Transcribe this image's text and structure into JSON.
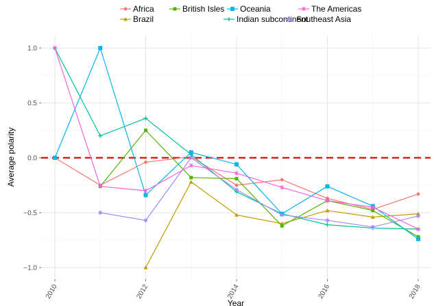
{
  "chart_data": {
    "type": "line",
    "xlabel": "Year",
    "ylabel": "Average polarity",
    "xlim": [
      2010,
      2018
    ],
    "ylim": [
      -1.1,
      1.1
    ],
    "x_ticks": [
      2010,
      2012,
      2014,
      2016,
      2018
    ],
    "y_ticks": [
      1.0,
      0.5,
      0.0,
      -0.5,
      -1.0
    ],
    "x_tick_labels": [
      "2010",
      "2012",
      "2014",
      "2016",
      "2018"
    ],
    "y_tick_labels": [
      "1.0",
      "0.5",
      "0.0",
      "−0.5",
      "−1.0"
    ],
    "grid": true,
    "legend_position": "top",
    "reference_line": {
      "y": 0.0,
      "style": "dashed",
      "color": "#e31a1c"
    },
    "series": [
      {
        "name": "Africa",
        "color": "#F8766D",
        "marker": "circle",
        "x": [
          2010,
          2011,
          2012,
          2013,
          2014,
          2015,
          2016,
          2017,
          2018
        ],
        "y": [
          0.0,
          -0.25,
          -0.04,
          0.01,
          -0.25,
          -0.2,
          -0.37,
          -0.47,
          -0.33
        ]
      },
      {
        "name": "Brazil",
        "color": "#C49A00",
        "marker": "triangle",
        "x": [
          2012,
          2013,
          2014,
          2015,
          2016,
          2017,
          2018
        ],
        "y": [
          -1.0,
          -0.22,
          -0.52,
          -0.6,
          -0.48,
          -0.54,
          -0.51
        ]
      },
      {
        "name": "British Isles",
        "color": "#53B400",
        "marker": "square",
        "x": [
          2011,
          2012,
          2013,
          2014,
          2015,
          2016,
          2017,
          2018
        ],
        "y": [
          -0.26,
          0.25,
          -0.18,
          -0.19,
          -0.62,
          -0.39,
          -0.48,
          -0.72
        ]
      },
      {
        "name": "Indian subcontinent",
        "color": "#00C094",
        "marker": "plus",
        "x": [
          2010,
          2011,
          2012,
          2013,
          2014,
          2015,
          2016,
          2017,
          2018
        ],
        "y": [
          1.0,
          0.2,
          0.36,
          0.03,
          -0.31,
          -0.51,
          -0.61,
          -0.64,
          -0.65
        ]
      },
      {
        "name": "Oceania",
        "color": "#00B6EB",
        "marker": "boxed-square",
        "x": [
          2010,
          2011,
          2012,
          2013,
          2014,
          2015,
          2016,
          2017,
          2018
        ],
        "y": [
          0.0,
          1.0,
          -0.34,
          0.05,
          -0.06,
          -0.51,
          -0.26,
          -0.44,
          -0.74
        ]
      },
      {
        "name": "Southeast Asia",
        "color": "#A58AFF",
        "marker": "star",
        "x": [
          2011,
          2012,
          2013,
          2014,
          2015,
          2016,
          2017,
          2018
        ],
        "y": [
          -0.5,
          -0.57,
          0.0,
          -0.29,
          -0.52,
          -0.57,
          -0.63,
          -0.53
        ]
      },
      {
        "name": "The Americas",
        "color": "#FB61D7",
        "marker": "diamond",
        "x": [
          2010,
          2011,
          2012,
          2013,
          2014,
          2015,
          2016,
          2017,
          2018
        ],
        "y": [
          1.0,
          -0.26,
          -0.3,
          -0.07,
          -0.14,
          -0.27,
          -0.39,
          -0.45,
          -0.65
        ]
      }
    ]
  }
}
